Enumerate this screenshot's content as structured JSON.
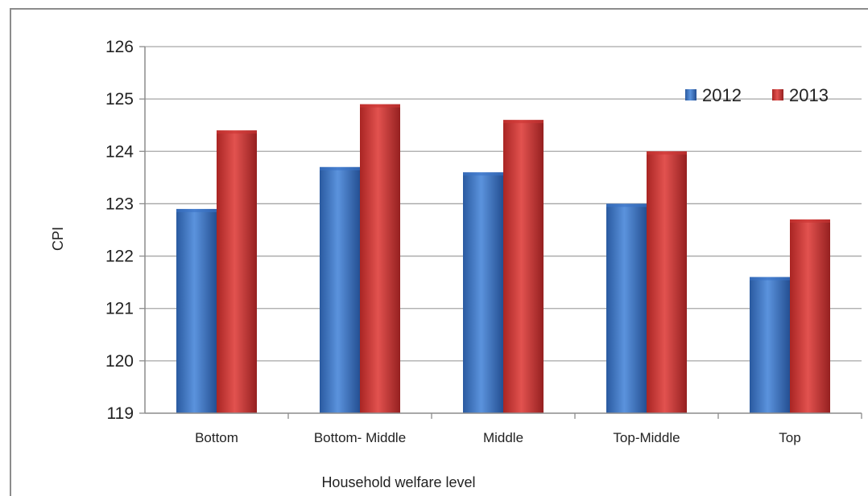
{
  "chart_data": {
    "type": "bar",
    "title": "",
    "xlabel": "Household welfare level",
    "ylabel": "CPI",
    "categories": [
      "Bottom",
      "Bottom- Middle",
      "Middle",
      "Top-Middle",
      "Top"
    ],
    "series": [
      {
        "name": "2012",
        "color": "#3a73c6",
        "values": [
          122.9,
          123.7,
          123.6,
          123.0,
          121.6
        ]
      },
      {
        "name": "2013",
        "color": "#cc3533",
        "values": [
          124.4,
          124.9,
          124.6,
          124.0,
          122.7
        ]
      }
    ],
    "ylim": [
      119,
      126
    ],
    "yticks": [
      "119",
      "120",
      "121",
      "122",
      "123",
      "124",
      "125",
      "126"
    ],
    "grid": true,
    "legend_position": "top-right"
  }
}
